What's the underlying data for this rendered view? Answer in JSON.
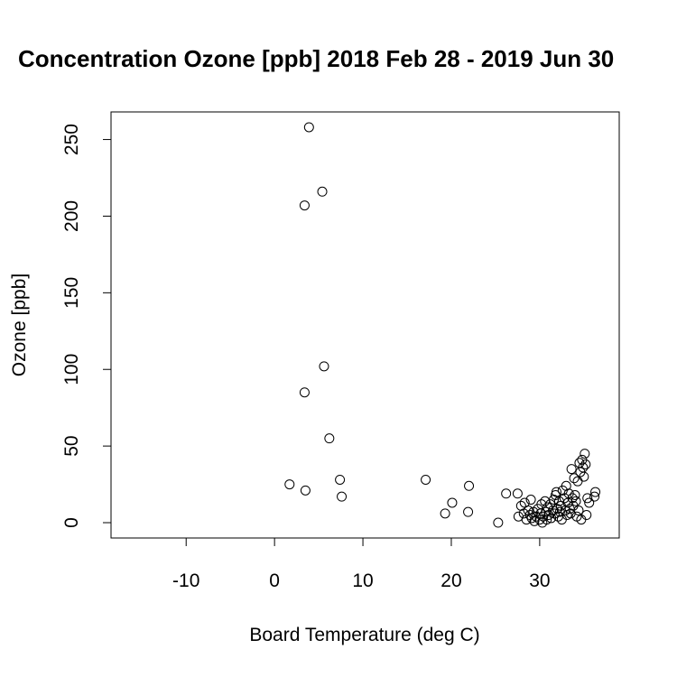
{
  "chart_data": {
    "type": "scatter",
    "title": "Concentration Ozone [ppb] 2018 Feb 28 - 2019 Jun 30",
    "xlabel": "Board Temperature (deg C)",
    "ylabel": "Ozone [ppb]",
    "xlim": [
      -18.5,
      39
    ],
    "ylim": [
      -10,
      268
    ],
    "xticks": [
      -10,
      0,
      10,
      20,
      30
    ],
    "yticks": [
      0,
      50,
      100,
      150,
      200,
      250
    ],
    "grid": false,
    "points": [
      [
        3.9,
        258
      ],
      [
        5.4,
        216
      ],
      [
        3.4,
        207
      ],
      [
        5.6,
        102
      ],
      [
        3.4,
        85
      ],
      [
        6.2,
        55
      ],
      [
        1.7,
        25
      ],
      [
        3.5,
        21
      ],
      [
        7.4,
        28
      ],
      [
        7.6,
        17
      ],
      [
        17.1,
        28
      ],
      [
        19.3,
        6
      ],
      [
        20.1,
        13
      ],
      [
        22.0,
        24
      ],
      [
        21.9,
        7
      ],
      [
        25.3,
        0
      ],
      [
        26.2,
        19
      ],
      [
        27.5,
        19
      ],
      [
        27.6,
        4
      ],
      [
        27.9,
        11
      ],
      [
        28.2,
        6
      ],
      [
        28.3,
        13
      ],
      [
        28.5,
        2
      ],
      [
        28.7,
        8
      ],
      [
        28.9,
        5
      ],
      [
        29.0,
        15
      ],
      [
        29.1,
        3
      ],
      [
        29.3,
        7
      ],
      [
        29.4,
        1
      ],
      [
        29.6,
        4
      ],
      [
        29.8,
        9
      ],
      [
        30.0,
        2
      ],
      [
        30.1,
        6
      ],
      [
        30.2,
        12
      ],
      [
        30.3,
        0
      ],
      [
        30.4,
        4
      ],
      [
        30.6,
        14
      ],
      [
        30.7,
        7
      ],
      [
        30.8,
        2
      ],
      [
        30.9,
        10
      ],
      [
        31.0,
        5
      ],
      [
        31.2,
        12
      ],
      [
        31.3,
        3
      ],
      [
        31.5,
        8
      ],
      [
        31.6,
        15
      ],
      [
        31.7,
        6
      ],
      [
        31.8,
        18
      ],
      [
        31.9,
        20
      ],
      [
        32.0,
        9
      ],
      [
        32.1,
        4
      ],
      [
        32.2,
        14
      ],
      [
        32.3,
        7
      ],
      [
        32.4,
        11
      ],
      [
        32.5,
        2
      ],
      [
        32.6,
        21
      ],
      [
        32.8,
        16
      ],
      [
        32.9,
        8
      ],
      [
        33.0,
        24
      ],
      [
        33.1,
        5
      ],
      [
        33.2,
        13
      ],
      [
        33.3,
        19
      ],
      [
        33.4,
        9
      ],
      [
        33.5,
        6
      ],
      [
        33.6,
        35
      ],
      [
        33.7,
        16
      ],
      [
        33.8,
        11
      ],
      [
        33.9,
        29
      ],
      [
        34.0,
        18
      ],
      [
        34.1,
        14
      ],
      [
        34.2,
        4
      ],
      [
        34.3,
        27
      ],
      [
        34.4,
        8
      ],
      [
        34.5,
        39
      ],
      [
        34.6,
        33
      ],
      [
        34.7,
        2
      ],
      [
        34.8,
        41
      ],
      [
        34.9,
        36
      ],
      [
        35.0,
        30
      ],
      [
        35.1,
        45
      ],
      [
        35.2,
        38
      ],
      [
        35.3,
        5
      ],
      [
        35.4,
        16
      ],
      [
        35.6,
        13
      ],
      [
        36.2,
        17
      ],
      [
        36.3,
        20
      ]
    ]
  }
}
